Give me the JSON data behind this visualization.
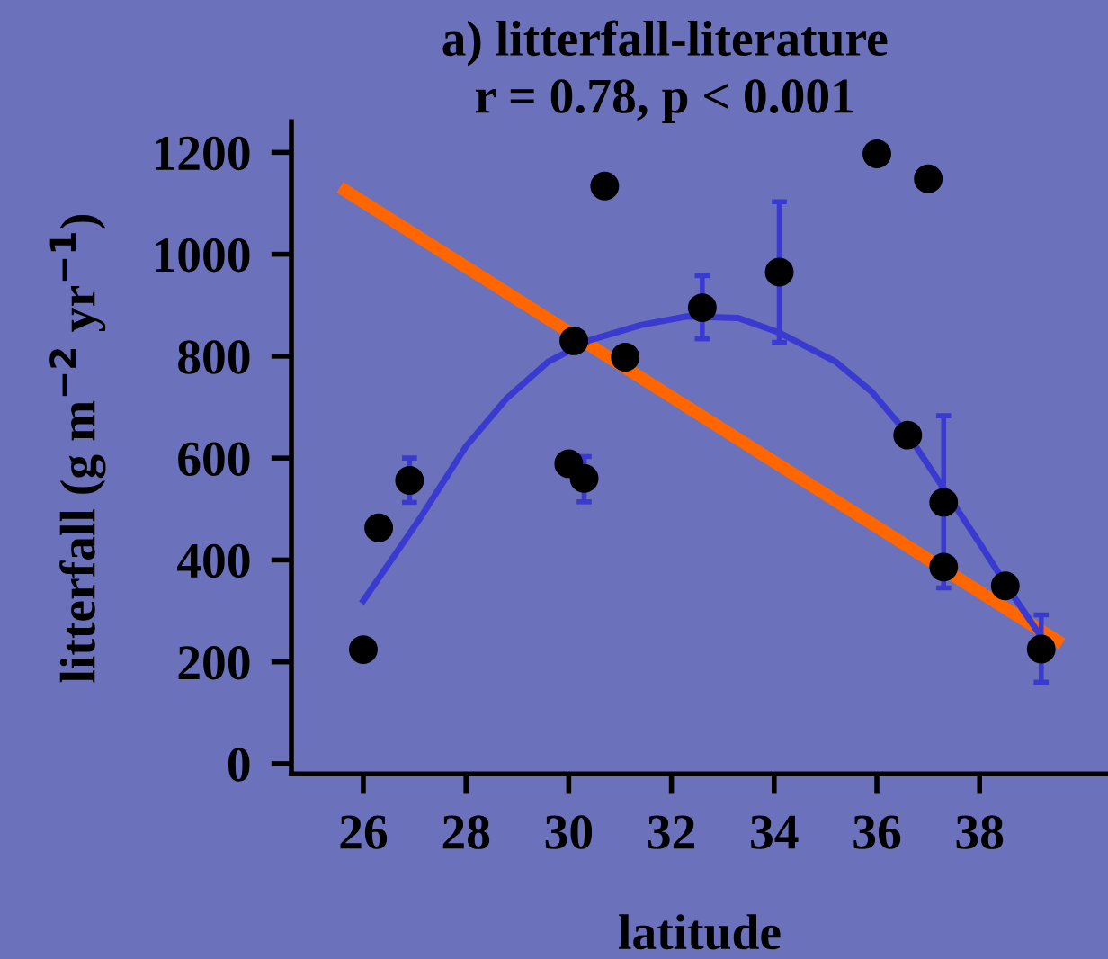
{
  "chart_data": {
    "type": "scatter",
    "title": "a) litterfall-literature",
    "subtitle": "r = 0.78, p < 0.001",
    "xlabel": "latitude",
    "ylabel": "litterfall (g m$^{−2}$ yr$^{−1}$)",
    "xlim": [
      24.6,
      40.5
    ],
    "ylim": [
      -20,
      1260
    ],
    "xticks": [
      26,
      28,
      30,
      32,
      34,
      36,
      38
    ],
    "yticks": [
      0,
      200,
      400,
      600,
      800,
      1000,
      1200
    ],
    "grid": false,
    "legend": false,
    "series": [
      {
        "type": "line",
        "color": "#ff6600",
        "x": [
          25.65,
          39.5
        ],
        "values": [
          1125,
          242
        ],
        "marker": "none"
      },
      {
        "type": "line",
        "color": "#3a3ad0",
        "x": [
          26.0,
          27.1,
          28.0,
          28.8,
          29.6,
          30.4,
          31.4,
          32.3,
          33.3,
          34.1,
          35.2,
          35.9,
          36.6,
          37.3,
          38.0,
          38.6,
          39.2
        ],
        "values": [
          320,
          481,
          623,
          718,
          789,
          831,
          861,
          878,
          875,
          846,
          789,
          730,
          647,
          540,
          433,
          338,
          249
        ],
        "marker": "none"
      },
      {
        "color": "#000000",
        "marker": "circle",
        "x": [
          26.0,
          26.3,
          26.9,
          30.7,
          30.1,
          31.1,
          30.0,
          30.3,
          32.6,
          34.1,
          36.0,
          37.0,
          36.6,
          37.3,
          37.3,
          38.5,
          39.2
        ],
        "values": [
          224,
          463,
          556,
          1134,
          830,
          798,
          589,
          560,
          895,
          965,
          1197,
          1148,
          645,
          513,
          386,
          349,
          225
        ],
        "errors": [
          null,
          null,
          [
            513,
            600
          ],
          null,
          null,
          null,
          null,
          [
            514,
            603
          ],
          [
            834,
            958
          ],
          [
            827,
            1103
          ],
          null,
          null,
          null,
          [
            345,
            683
          ],
          null,
          null,
          [
            160,
            292
          ]
        ]
      }
    ]
  }
}
